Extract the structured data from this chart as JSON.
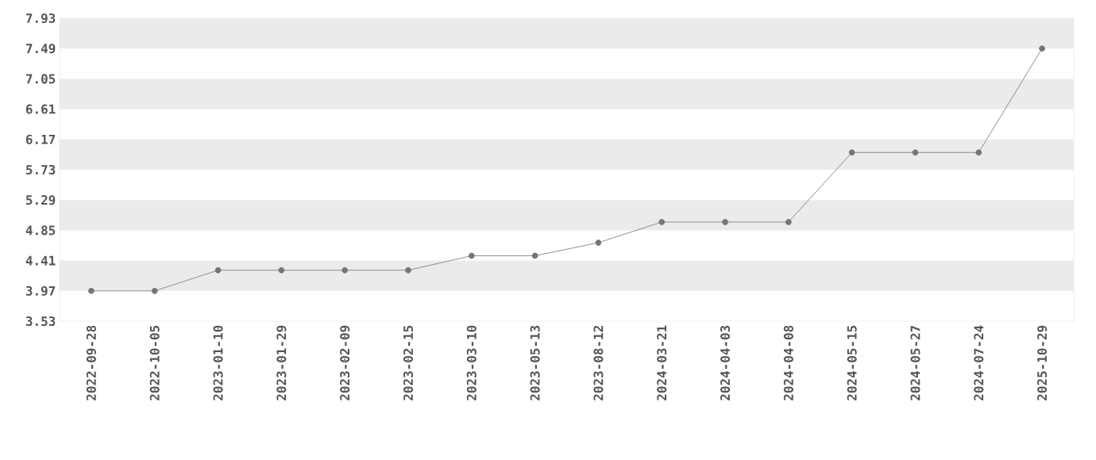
{
  "chart_data": {
    "type": "line",
    "categories": [
      "2022-09-28",
      "2022-10-05",
      "2023-01-10",
      "2023-01-29",
      "2023-02-09",
      "2023-02-15",
      "2023-03-10",
      "2023-05-13",
      "2023-08-12",
      "2024-03-21",
      "2024-04-03",
      "2024-04-08",
      "2024-05-15",
      "2024-05-27",
      "2024-07-24",
      "2025-10-29"
    ],
    "series": [
      {
        "color": "#757575",
        "values": [
          3.97,
          3.97,
          4.27,
          4.27,
          4.27,
          4.27,
          4.48,
          4.48,
          4.67,
          4.97,
          4.97,
          4.97,
          5.98,
          5.98,
          5.98,
          7.49
        ]
      }
    ],
    "ylim": [
      3.53,
      7.93
    ],
    "yticks": [
      3.53,
      3.97,
      4.41,
      4.85,
      5.29,
      5.73,
      6.17,
      6.61,
      7.05,
      7.49,
      7.93
    ],
    "marker": "circle",
    "line_style": "solid"
  }
}
